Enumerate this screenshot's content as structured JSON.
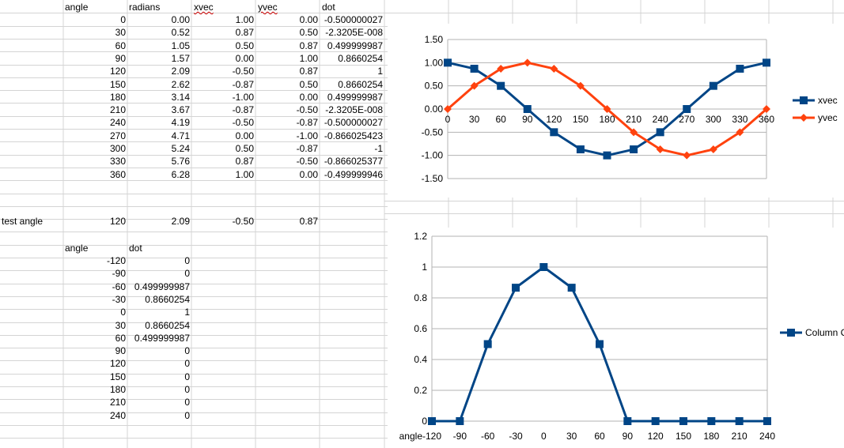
{
  "sheet": {
    "header": {
      "angle": "angle",
      "radians": "radians",
      "xvec": "xvec",
      "yvec": "yvec",
      "dot": "dot"
    },
    "rows": [
      [
        "0",
        "0.00",
        "1.00",
        "0.00",
        "-0.500000027"
      ],
      [
        "30",
        "0.52",
        "0.87",
        "0.50",
        "-2.3205E-008"
      ],
      [
        "60",
        "1.05",
        "0.50",
        "0.87",
        "0.499999987"
      ],
      [
        "90",
        "1.57",
        "0.00",
        "1.00",
        "0.8660254"
      ],
      [
        "120",
        "2.09",
        "-0.50",
        "0.87",
        "1"
      ],
      [
        "150",
        "2.62",
        "-0.87",
        "0.50",
        "0.8660254"
      ],
      [
        "180",
        "3.14",
        "-1.00",
        "0.00",
        "0.499999987"
      ],
      [
        "210",
        "3.67",
        "-0.87",
        "-0.50",
        "-2.3205E-008"
      ],
      [
        "240",
        "4.19",
        "-0.50",
        "-0.87",
        "-0.500000027"
      ],
      [
        "270",
        "4.71",
        "0.00",
        "-1.00",
        "-0.866025423"
      ],
      [
        "300",
        "5.24",
        "0.50",
        "-0.87",
        "-1"
      ],
      [
        "330",
        "5.76",
        "0.87",
        "-0.50",
        "-0.866025377"
      ],
      [
        "360",
        "6.28",
        "1.00",
        "0.00",
        "-0.499999946"
      ]
    ],
    "test_row": {
      "label": "test angle",
      "angle": "120",
      "radians": "2.09",
      "xvec": "-0.50",
      "yvec": "0.87"
    },
    "table2": {
      "header": {
        "angle": "angle",
        "dot": "dot"
      },
      "rows": [
        [
          "-120",
          "0"
        ],
        [
          "-90",
          "0"
        ],
        [
          "-60",
          "0.499999987"
        ],
        [
          "-30",
          "0.8660254"
        ],
        [
          "0",
          "1"
        ],
        [
          "30",
          "0.8660254"
        ],
        [
          "60",
          "0.499999987"
        ],
        [
          "90",
          "0"
        ],
        [
          "120",
          "0"
        ],
        [
          "150",
          "0"
        ],
        [
          "180",
          "0"
        ],
        [
          "210",
          "0"
        ],
        [
          "240",
          "0"
        ]
      ]
    }
  },
  "chart_data": [
    {
      "type": "line",
      "title": "",
      "xlabel": "",
      "ylabel": "",
      "categories": [
        "0",
        "30",
        "60",
        "90",
        "120",
        "150",
        "180",
        "210",
        "240",
        "270",
        "300",
        "330",
        "360"
      ],
      "series": [
        {
          "name": "xvec",
          "color": "#004586",
          "marker": "square",
          "values": [
            1.0,
            0.87,
            0.5,
            0.0,
            -0.5,
            -0.87,
            -1.0,
            -0.87,
            -0.5,
            0.0,
            0.5,
            0.87,
            1.0
          ]
        },
        {
          "name": "yvec",
          "color": "#ff420e",
          "marker": "diamond",
          "values": [
            0.0,
            0.5,
            0.87,
            1.0,
            0.87,
            0.5,
            0.0,
            -0.5,
            -0.87,
            -1.0,
            -0.87,
            -0.5,
            0.0
          ]
        }
      ],
      "ylim": [
        -1.5,
        1.5
      ],
      "yticks": [
        "1.50",
        "1.00",
        "0.50",
        "0.00",
        "-0.50",
        "-1.00",
        "-1.50"
      ],
      "grid": true,
      "legend": "right"
    },
    {
      "type": "line",
      "title": "",
      "xlabel": "",
      "ylabel": "",
      "axis_label_left": "angle",
      "categories": [
        "-120",
        "-90",
        "-60",
        "-30",
        "0",
        "30",
        "60",
        "90",
        "120",
        "150",
        "180",
        "210",
        "240"
      ],
      "series": [
        {
          "name": "Column C",
          "color": "#004586",
          "marker": "square",
          "values": [
            0,
            0,
            0.5,
            0.866,
            1,
            0.866,
            0.5,
            0,
            0,
            0,
            0,
            0,
            0
          ]
        }
      ],
      "ylim": [
        0,
        1.2
      ],
      "yticks": [
        "1.2",
        "1",
        "0.8",
        "0.6",
        "0.4",
        "0.2",
        "0"
      ],
      "grid": true,
      "legend": "right"
    }
  ]
}
